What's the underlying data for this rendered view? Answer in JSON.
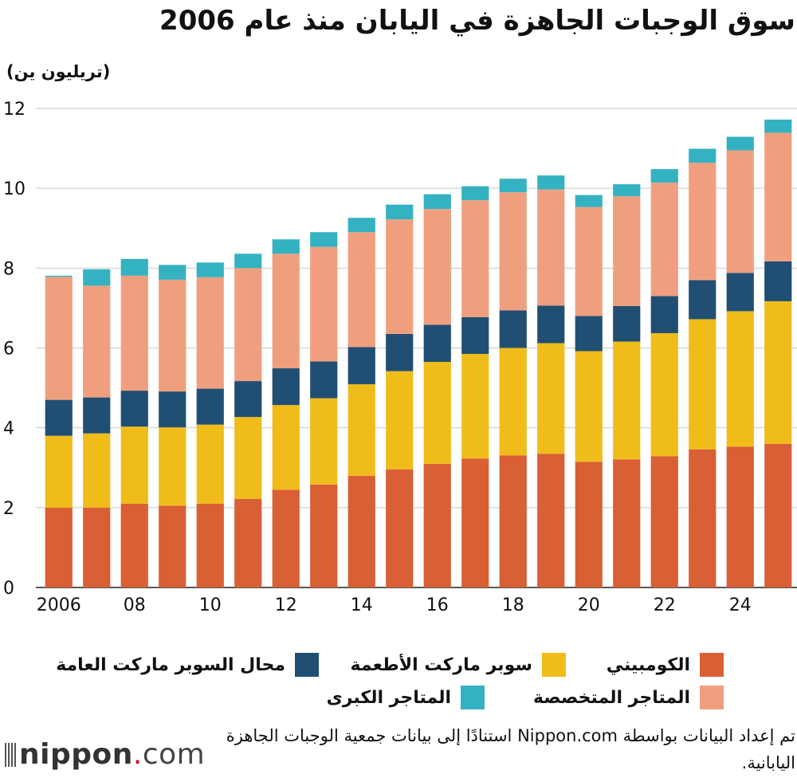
{
  "title": "سوق الوجبات الجاهزة في اليابان منذ عام 2006",
  "unit_label": "(تريليون ين)",
  "source_text": "تم إعداد البيانات بواسطة Nippon.com استنادًا إلى بيانات جمعية الوجبات الجاهزة اليابانية.",
  "logo": {
    "name": "nippon",
    "dot": ".",
    "suffix": "com"
  },
  "chart_data": {
    "type": "bar",
    "stacked": true,
    "ylim": [
      0,
      12
    ],
    "yticks": [
      0,
      2,
      4,
      6,
      8,
      10,
      12
    ],
    "grid": true,
    "legend_position": "bottom",
    "categories": [
      "2006",
      "2007",
      "2008",
      "2009",
      "2010",
      "2011",
      "2012",
      "2013",
      "2014",
      "2015",
      "2016",
      "2017",
      "2018",
      "2019",
      "2020",
      "2021",
      "2022",
      "2023",
      "2024",
      "2025"
    ],
    "xtick_labels": [
      "2006",
      "",
      "08",
      "",
      "10",
      "",
      "12",
      "",
      "14",
      "",
      "16",
      "",
      "18",
      "",
      "20",
      "",
      "22",
      "",
      "24",
      ""
    ],
    "series": [
      {
        "name": "الكومبيني",
        "color": "#d95f35",
        "values": [
          2.0,
          2.0,
          2.1,
          2.05,
          2.1,
          2.22,
          2.45,
          2.58,
          2.8,
          2.96,
          3.1,
          3.23,
          3.31,
          3.35,
          3.15,
          3.21,
          3.29,
          3.46,
          3.53,
          3.6
        ]
      },
      {
        "name": "سوبر ماركت الأطعمة",
        "color": "#f0bc1a",
        "values": [
          1.8,
          1.86,
          1.93,
          1.96,
          1.98,
          2.05,
          2.12,
          2.16,
          2.29,
          2.46,
          2.55,
          2.62,
          2.69,
          2.77,
          2.77,
          2.95,
          3.08,
          3.26,
          3.39,
          3.57
        ]
      },
      {
        "name": "محال السوبر ماركت العامة",
        "color": "#214f73",
        "values": [
          0.9,
          0.9,
          0.9,
          0.9,
          0.9,
          0.9,
          0.92,
          0.92,
          0.93,
          0.93,
          0.93,
          0.92,
          0.94,
          0.94,
          0.88,
          0.89,
          0.93,
          0.98,
          0.96,
          1.0
        ]
      },
      {
        "name": "المتاجر المتخصصة",
        "color": "#f09f7e",
        "values": [
          3.08,
          2.8,
          2.88,
          2.8,
          2.79,
          2.83,
          2.87,
          2.87,
          2.88,
          2.87,
          2.9,
          2.93,
          2.96,
          2.91,
          2.73,
          2.75,
          2.84,
          2.94,
          3.07,
          3.22
        ]
      },
      {
        "name": "المتاجر الكبرى",
        "color": "#34b2c1",
        "values": [
          0.03,
          0.41,
          0.42,
          0.37,
          0.37,
          0.36,
          0.36,
          0.37,
          0.36,
          0.37,
          0.37,
          0.35,
          0.34,
          0.35,
          0.3,
          0.3,
          0.34,
          0.35,
          0.34,
          0.33
        ]
      }
    ]
  }
}
